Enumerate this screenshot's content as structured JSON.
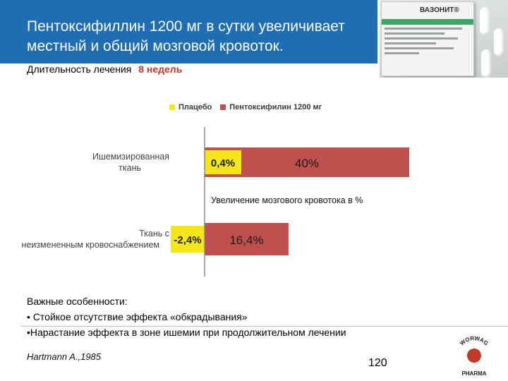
{
  "slide": {
    "title": "Пентоксифиллин 1200 мг в сутки увеличивает местный и общий мозговой кровоток.",
    "duration_label": "Длительность лечения",
    "duration_value": "8 недель",
    "page_number": "120",
    "citation": "Hartmann A.,1985",
    "header_color": "#1f6db3",
    "accent_color": "#c0392b"
  },
  "package": {
    "brand": "ВАЗОНИТ®",
    "stripe_color": "#3da564",
    "icon": "medicine-box-image"
  },
  "logo": {
    "top_text": "WORWAG",
    "bottom_text": "PHARMA",
    "icon": "worwag-pharma-logo"
  },
  "notes": {
    "heading": "Важные особенности:",
    "items": [
      "• Стойкое отсутствие эффекта «обкрадывания»",
      "•Нарастание эффекта в зоне ишемии при продолжительном лечении"
    ]
  },
  "chart_data": {
    "type": "bar",
    "orientation": "horizontal",
    "categories": [
      "Ишемизированная ткань",
      "Ткань с неизмененным кровоснабжением"
    ],
    "series": [
      {
        "name": "Плацебо",
        "color": "#f5e61c",
        "values": [
          0.4,
          -2.4
        ],
        "labels": [
          "0,4%",
          "-2,4%"
        ]
      },
      {
        "name": "Пентоксифилин 1200 мг",
        "color": "#c0504d",
        "values": [
          40,
          16.4
        ],
        "labels": [
          "40%",
          "16,4%"
        ]
      }
    ],
    "annotation": "Увеличение мозгового кровотока в %",
    "legend_position": "top",
    "grid": false
  }
}
